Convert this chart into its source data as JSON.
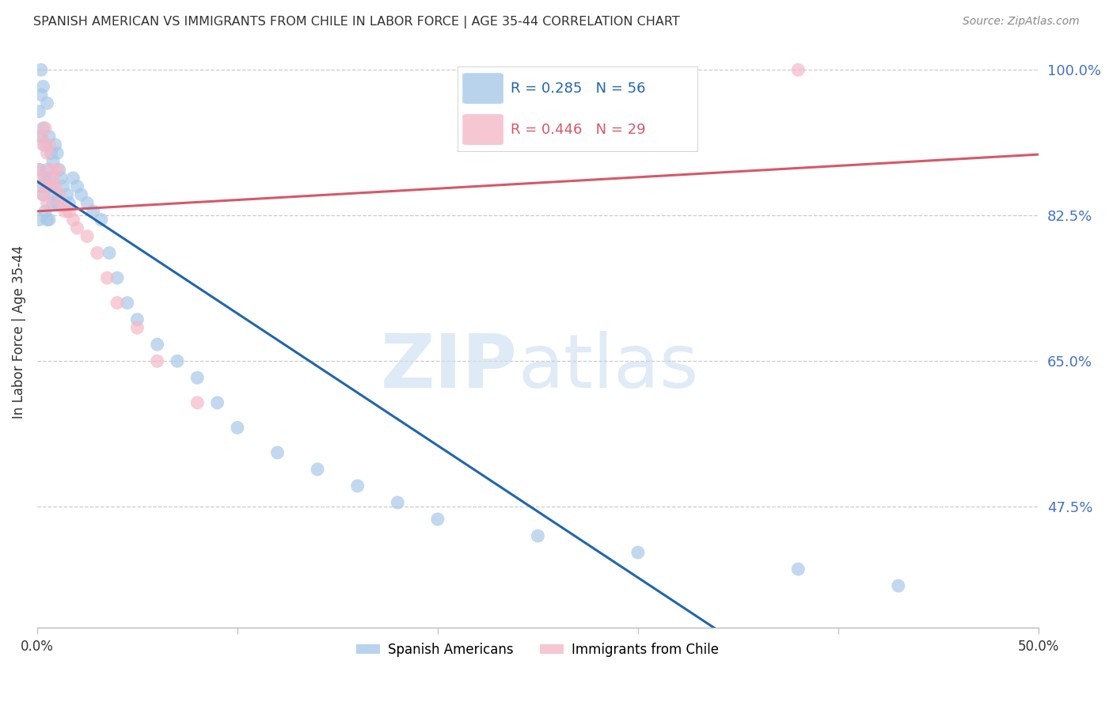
{
  "title": "SPANISH AMERICAN VS IMMIGRANTS FROM CHILE IN LABOR FORCE | AGE 35-44 CORRELATION CHART",
  "source": "Source: ZipAtlas.com",
  "ylabel": "In Labor Force | Age 35-44",
  "ytick_labels": [
    "100.0%",
    "82.5%",
    "65.0%",
    "47.5%"
  ],
  "ytick_values": [
    1.0,
    0.825,
    0.65,
    0.475
  ],
  "xlim": [
    0.0,
    0.5
  ],
  "ylim": [
    0.33,
    1.04
  ],
  "blue_color": "#a8c8e8",
  "pink_color": "#f4b8c8",
  "blue_line_color": "#2166ac",
  "pink_line_color": "#d6586a",
  "blue_R": 0.285,
  "blue_N": 56,
  "pink_R": 0.446,
  "pink_N": 29,
  "legend_label_blue": "Spanish Americans",
  "legend_label_pink": "Immigrants from Chile",
  "blue_x": [
    0.001,
    0.001,
    0.001,
    0.002,
    0.002,
    0.002,
    0.002,
    0.003,
    0.003,
    0.003,
    0.004,
    0.004,
    0.004,
    0.005,
    0.005,
    0.005,
    0.006,
    0.006,
    0.006,
    0.007,
    0.007,
    0.008,
    0.008,
    0.009,
    0.009,
    0.01,
    0.01,
    0.011,
    0.012,
    0.013,
    0.015,
    0.016,
    0.018,
    0.02,
    0.022,
    0.025,
    0.028,
    0.032,
    0.036,
    0.04,
    0.045,
    0.05,
    0.06,
    0.07,
    0.08,
    0.09,
    0.1,
    0.12,
    0.14,
    0.16,
    0.18,
    0.2,
    0.25,
    0.3,
    0.38,
    0.43
  ],
  "blue_y": [
    0.95,
    0.88,
    0.82,
    1.0,
    0.97,
    0.92,
    0.86,
    0.98,
    0.93,
    0.85,
    0.91,
    0.87,
    0.83,
    0.96,
    0.88,
    0.82,
    0.92,
    0.87,
    0.82,
    0.9,
    0.86,
    0.89,
    0.84,
    0.91,
    0.85,
    0.9,
    0.84,
    0.88,
    0.87,
    0.86,
    0.85,
    0.84,
    0.87,
    0.86,
    0.85,
    0.84,
    0.83,
    0.82,
    0.78,
    0.75,
    0.72,
    0.7,
    0.67,
    0.65,
    0.63,
    0.6,
    0.57,
    0.54,
    0.52,
    0.5,
    0.48,
    0.46,
    0.44,
    0.42,
    0.4,
    0.38
  ],
  "pink_x": [
    0.001,
    0.002,
    0.002,
    0.003,
    0.003,
    0.004,
    0.004,
    0.005,
    0.005,
    0.006,
    0.006,
    0.007,
    0.008,
    0.009,
    0.01,
    0.011,
    0.012,
    0.014,
    0.016,
    0.018,
    0.02,
    0.025,
    0.03,
    0.035,
    0.04,
    0.05,
    0.06,
    0.08,
    0.38
  ],
  "pink_y": [
    0.88,
    0.92,
    0.87,
    0.91,
    0.85,
    0.93,
    0.86,
    0.9,
    0.84,
    0.91,
    0.86,
    0.88,
    0.87,
    0.86,
    0.88,
    0.85,
    0.84,
    0.83,
    0.83,
    0.82,
    0.81,
    0.8,
    0.78,
    0.75,
    0.72,
    0.69,
    0.65,
    0.6,
    1.0
  ]
}
